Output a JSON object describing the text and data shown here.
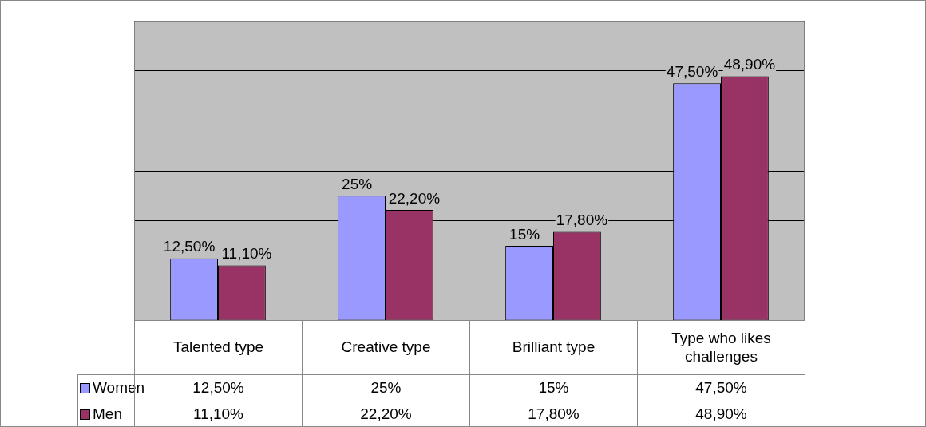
{
  "chart_data": {
    "type": "bar",
    "categories": [
      "Talented type",
      "Creative type",
      "Brilliant type",
      "Type who likes challenges"
    ],
    "series": [
      {
        "name": "Women",
        "color": "#9999ff",
        "values": [
          12.5,
          25,
          15,
          47.5
        ],
        "value_labels": [
          "12,50%",
          "25%",
          "15%",
          "47,50%"
        ]
      },
      {
        "name": "Men",
        "color": "#993366",
        "values": [
          11.1,
          22.2,
          17.8,
          48.9
        ],
        "value_labels": [
          "11,10%",
          "22,20%",
          "17,80%",
          "48,90%"
        ]
      }
    ],
    "grid": "y",
    "legend": "bottom",
    "tick_labels": false
  }
}
